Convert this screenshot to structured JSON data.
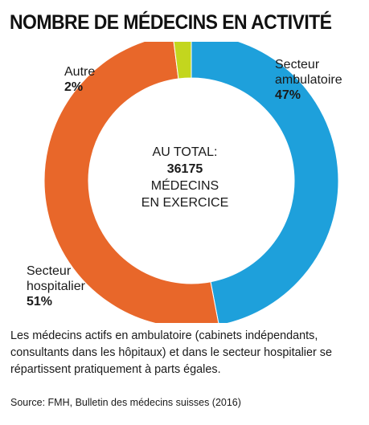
{
  "title": "NOMBRE DE MÉDECINS EN ACTIVITÉ",
  "chart_data": {
    "type": "pie",
    "variant": "donut",
    "series": [
      {
        "name": "Secteur ambulatoire",
        "value": 47,
        "label": "47%",
        "color": "#1ea0db"
      },
      {
        "name": "Secteur hospitalier",
        "value": 51,
        "label": "51%",
        "color": "#e8672a"
      },
      {
        "name": "Autre",
        "value": 2,
        "label": "2%",
        "color": "#c3d61e"
      }
    ],
    "center": {
      "line1": "AU TOTAL:",
      "total": "36175",
      "line3": "MÉDECINS",
      "line4": "EN EXERCICE"
    }
  },
  "labels": {
    "ambulatoire": {
      "name1": "Secteur",
      "name2": "ambulatoire",
      "pct": "47%"
    },
    "hospitalier": {
      "name1": "Secteur",
      "name2": "hospitalier",
      "pct": "51%"
    },
    "autre": {
      "name1": "Autre",
      "pct": "2%"
    }
  },
  "caption": "Les médecins actifs en ambulatoire (cabinets indépendants, consultants dans les hôpitaux) et dans le secteur hospitalier se répartissent pratiquement à parts égales.",
  "source": "Source: FMH, Bulletin des médecins suisses (2016)"
}
